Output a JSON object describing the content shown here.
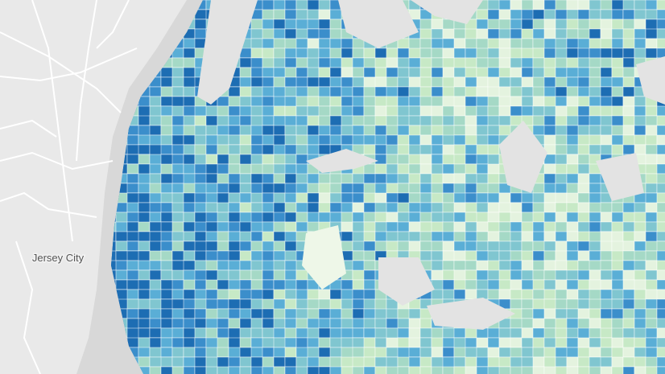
{
  "map": {
    "labels": [
      "Jersey City"
    ]
  }
}
